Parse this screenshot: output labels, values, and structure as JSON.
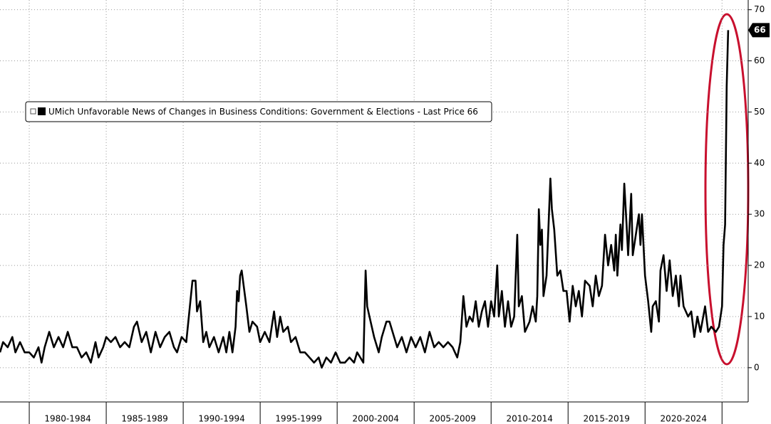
{
  "chart_data": {
    "type": "line",
    "series": [
      {
        "name": "UMich Unfavorable News of Changes in Business Conditions: Government & Elections - Last Price 66",
        "color": "#000000",
        "x": [
          1978.1,
          1978.3,
          1978.6,
          1978.9,
          1979.1,
          1979.4,
          1979.7,
          1980,
          1980.3,
          1980.6,
          1980.8,
          1981,
          1981.3,
          1981.6,
          1981.9,
          1982.2,
          1982.5,
          1982.8,
          1983.1,
          1983.4,
          1983.7,
          1984,
          1984.3,
          1984.5,
          1984.8,
          1985,
          1985.3,
          1985.6,
          1985.9,
          1986.2,
          1986.5,
          1986.8,
          1987,
          1987.3,
          1987.6,
          1987.9,
          1988.2,
          1988.5,
          1988.8,
          1989.1,
          1989.4,
          1989.6,
          1989.9,
          1990.2,
          1990.6,
          1990.8,
          1990.9,
          1991.1,
          1991.3,
          1991.5,
          1991.7,
          1992,
          1992.3,
          1992.6,
          1992.8,
          1993,
          1993.2,
          1993.4,
          1993.5,
          1993.6,
          1993.7,
          1993.8,
          1994.1,
          1994.3,
          1994.5,
          1994.8,
          1995,
          1995.3,
          1995.6,
          1995.9,
          1996.1,
          1996.3,
          1996.5,
          1996.8,
          1997,
          1997.3,
          1997.6,
          1997.9,
          1998.2,
          1998.5,
          1998.8,
          1999,
          1999.3,
          1999.6,
          1999.9,
          2000.2,
          2000.5,
          2000.8,
          2001.1,
          2001.3,
          2001.5,
          2001.7,
          2001.85,
          2001.95,
          2002.1,
          2002.4,
          2002.7,
          2002.9,
          2003.2,
          2003.4,
          2003.7,
          2003.9,
          2004.2,
          2004.5,
          2004.8,
          2005.1,
          2005.4,
          2005.7,
          2006,
          2006.3,
          2006.6,
          2006.9,
          2007.2,
          2007.5,
          2007.8,
          2008,
          2008.2,
          2008.4,
          2008.6,
          2008.8,
          2009,
          2009.2,
          2009.4,
          2009.6,
          2009.8,
          2010,
          2010.2,
          2010.4,
          2010.5,
          2010.7,
          2010.9,
          2011.1,
          2011.3,
          2011.5,
          2011.7,
          2011.8,
          2012,
          2012.2,
          2012.5,
          2012.7,
          2012.9,
          2013,
          2013.1,
          2013.2,
          2013.3,
          2013.4,
          2013.6,
          2013.85,
          2013.95,
          2014.1,
          2014.3,
          2014.5,
          2014.7,
          2014.9,
          2015.1,
          2015.3,
          2015.5,
          2015.7,
          2015.9,
          2016.1,
          2016.4,
          2016.6,
          2016.8,
          2017,
          2017.2,
          2017.4,
          2017.6,
          2017.8,
          2018,
          2018.1,
          2018.2,
          2018.4,
          2018.5,
          2018.65,
          2018.8,
          2018.9,
          2019.1,
          2019.2,
          2019.4,
          2019.6,
          2019.7,
          2019.8,
          2020,
          2020.2,
          2020.4,
          2020.5,
          2020.7,
          2020.9,
          2021,
          2021.2,
          2021.4,
          2021.6,
          2021.8,
          2022,
          2022.2,
          2022.3,
          2022.5,
          2022.8,
          2023,
          2023.2,
          2023.4,
          2023.6,
          2023.9,
          2024.1,
          2024.3,
          2024.6,
          2024.8,
          2025,
          2025.1,
          2025.2,
          2025.3,
          2025.4
        ],
        "values": [
          3,
          5,
          4,
          6,
          3,
          5,
          3,
          3,
          2,
          4,
          1,
          4,
          7,
          4,
          6,
          4,
          7,
          4,
          4,
          2,
          3,
          1,
          5,
          2,
          4,
          6,
          5,
          6,
          4,
          5,
          4,
          8,
          9,
          5,
          7,
          3,
          7,
          4,
          6,
          7,
          4,
          3,
          6,
          5,
          17,
          17,
          11,
          13,
          5,
          7,
          4,
          6,
          3,
          6,
          3,
          7,
          3,
          8,
          15,
          13,
          18,
          19,
          12,
          7,
          9,
          8,
          5,
          7,
          5,
          11,
          6,
          10,
          7,
          8,
          5,
          6,
          3,
          3,
          2,
          1,
          2,
          0,
          2,
          1,
          3,
          1,
          1,
          2,
          1,
          3,
          2,
          1,
          19,
          12,
          10,
          6,
          3,
          6,
          9,
          9,
          6,
          4,
          6,
          3,
          6,
          4,
          6,
          3,
          7,
          4,
          5,
          4,
          5,
          4,
          2,
          5,
          14,
          8,
          10,
          9,
          13,
          8,
          11,
          13,
          8,
          13,
          10,
          20,
          10,
          15,
          8,
          13,
          8,
          10,
          26,
          12,
          14,
          7,
          9,
          12,
          9,
          14,
          31,
          24,
          27,
          14,
          18,
          37,
          31,
          27,
          18,
          19,
          15,
          15,
          9,
          16,
          12,
          15,
          10,
          17,
          16,
          12,
          18,
          14,
          16,
          26,
          20,
          24,
          19,
          26,
          18,
          28,
          23,
          36,
          28,
          22,
          34,
          22,
          26,
          30,
          24,
          30,
          18,
          13,
          7,
          12,
          13,
          9,
          19,
          22,
          15,
          21,
          14,
          18,
          12,
          18,
          12,
          10,
          11,
          6,
          10,
          7,
          12,
          7,
          8,
          7,
          8,
          12,
          24,
          28,
          55,
          66
        ]
      }
    ],
    "last_price": 66,
    "xlim": [
      1978.1,
      2026.7
    ],
    "xticks": [
      1980,
      1985,
      1990,
      1995,
      2000,
      2005,
      2010,
      2015,
      2020,
      2025
    ],
    "x_periods": [
      "1980-1984",
      "1985-1989",
      "1990-1994",
      "1995-1999",
      "2000-2004",
      "2005-2009",
      "2010-2014",
      "2015-2019",
      "2020-2024"
    ],
    "ylim": [
      -6.7,
      71.9
    ],
    "yticks": [
      0,
      10,
      20,
      30,
      40,
      50,
      60,
      70
    ],
    "grid": true
  }
}
